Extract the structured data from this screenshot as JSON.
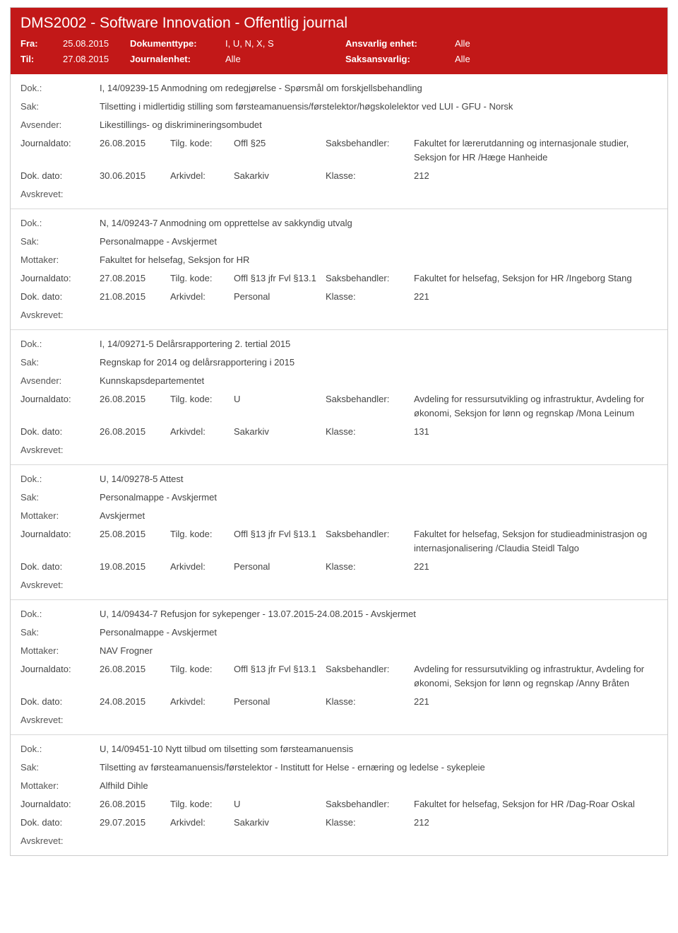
{
  "header": {
    "title": "DMS2002 - Software Innovation - Offentlig journal",
    "fra_label": "Fra:",
    "fra_value": "25.08.2015",
    "til_label": "Til:",
    "til_value": "27.08.2015",
    "doktype_label": "Dokumenttype:",
    "doktype_value": "I, U, N, X, S",
    "journalenhet_label": "Journalenhet:",
    "journalenhet_value": "Alle",
    "ansvarlig_label": "Ansvarlig enhet:",
    "ansvarlig_value": "Alle",
    "saksansvarlig_label": "Saksansvarlig:",
    "saksansvarlig_value": "Alle"
  },
  "labels": {
    "dok": "Dok.:",
    "sak": "Sak:",
    "avsender": "Avsender:",
    "mottaker": "Mottaker:",
    "journaldato": "Journaldato:",
    "tilgkode": "Tilg. kode:",
    "saksbehandler": "Saksbehandler:",
    "dokdato": "Dok. dato:",
    "arkivdel": "Arkivdel:",
    "klasse": "Klasse:",
    "avskrevet": "Avskrevet:"
  },
  "entries": [
    {
      "dok": "I, 14/09239-15 Anmodning om redegjørelse - Spørsmål om forskjellsbehandling",
      "sak": "Tilsetting i midlertidig stilling som førsteamanuensis/førstelektor/høgskolelektor ved LUI - GFU - Norsk",
      "party_label": "Avsender:",
      "party": "Likestillings- og diskrimineringsombudet",
      "journaldato": "26.08.2015",
      "tilgkode": "Offl §25",
      "saksbehandler": "Fakultet for lærerutdanning og internasjonale studier, Seksjon for HR /Hæge Hanheide",
      "dokdato": "30.06.2015",
      "arkivdel": "Sakarkiv",
      "klasse": "212"
    },
    {
      "dok": "N, 14/09243-7 Anmodning om opprettelse av sakkyndig utvalg",
      "sak": "Personalmappe - Avskjermet",
      "party_label": "Mottaker:",
      "party": "Fakultet for helsefag, Seksjon for HR",
      "journaldato": "27.08.2015",
      "tilgkode": "Offl §13 jfr Fvl §13.1",
      "saksbehandler": "Fakultet for helsefag, Seksjon for HR /Ingeborg Stang",
      "dokdato": "21.08.2015",
      "arkivdel": "Personal",
      "klasse": "221"
    },
    {
      "dok": "I, 14/09271-5 Delårsrapportering 2. tertial 2015",
      "sak": "Regnskap for 2014 og delårsrapportering i 2015",
      "party_label": "Avsender:",
      "party": "Kunnskapsdepartementet",
      "journaldato": "26.08.2015",
      "tilgkode": "U",
      "saksbehandler": "Avdeling for ressursutvikling og infrastruktur, Avdeling for økonomi, Seksjon for lønn og regnskap /Mona Leinum",
      "dokdato": "26.08.2015",
      "arkivdel": "Sakarkiv",
      "klasse": "131"
    },
    {
      "dok": "U, 14/09278-5 Attest",
      "sak": "Personalmappe - Avskjermet",
      "party_label": "Mottaker:",
      "party": "Avskjermet",
      "journaldato": "25.08.2015",
      "tilgkode": "Offl §13 jfr Fvl §13.1",
      "saksbehandler": "Fakultet for helsefag, Seksjon for studieadministrasjon og internasjonalisering /Claudia Steidl Talgo",
      "dokdato": "19.08.2015",
      "arkivdel": "Personal",
      "klasse": "221"
    },
    {
      "dok": "U, 14/09434-7 Refusjon for sykepenger - 13.07.2015-24.08.2015 - Avskjermet",
      "sak": "Personalmappe - Avskjermet",
      "party_label": "Mottaker:",
      "party": "NAV Frogner",
      "journaldato": "26.08.2015",
      "tilgkode": "Offl §13 jfr Fvl §13.1",
      "saksbehandler": "Avdeling for ressursutvikling og infrastruktur, Avdeling for økonomi, Seksjon for lønn og regnskap /Anny Bråten",
      "dokdato": "24.08.2015",
      "arkivdel": "Personal",
      "klasse": "221"
    },
    {
      "dok": "U, 14/09451-10 Nytt tilbud om tilsetting som førsteamanuensis",
      "sak": "Tilsetting av førsteamanuensis/førstelektor - Institutt for Helse - ernæring og ledelse - sykepleie",
      "party_label": "Mottaker:",
      "party": "Alfhild Dihle",
      "journaldato": "26.08.2015",
      "tilgkode": "U",
      "saksbehandler": "Fakultet for helsefag, Seksjon for HR /Dag-Roar Oskal",
      "dokdato": "29.07.2015",
      "arkivdel": "Sakarkiv",
      "klasse": "212"
    }
  ]
}
